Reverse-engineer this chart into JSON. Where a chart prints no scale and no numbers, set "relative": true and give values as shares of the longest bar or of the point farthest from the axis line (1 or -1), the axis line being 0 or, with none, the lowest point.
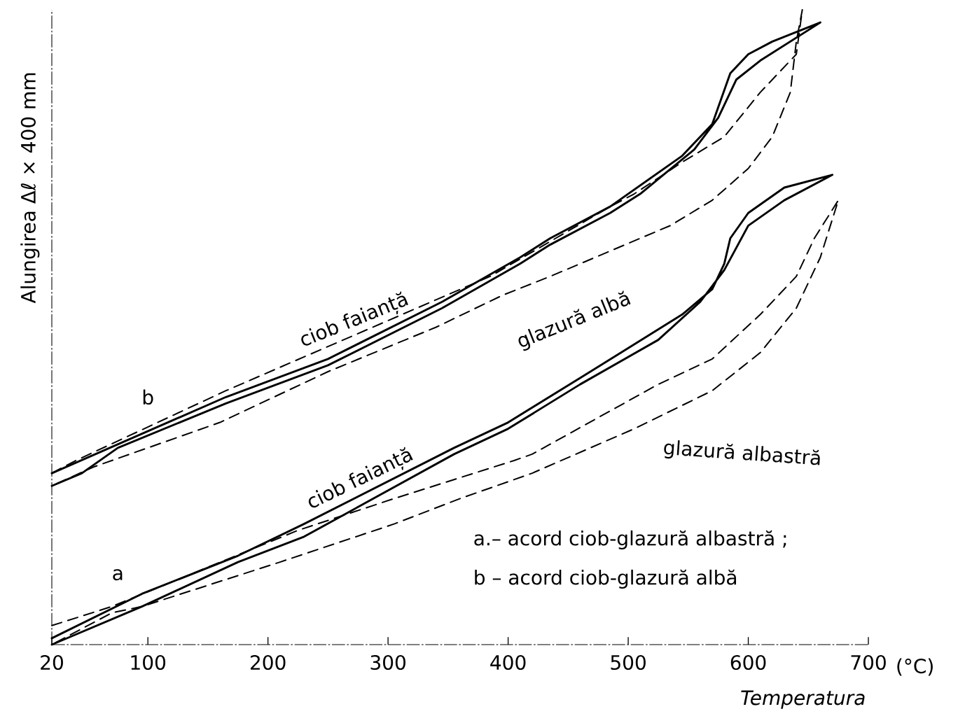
{
  "chart_data": {
    "type": "line",
    "relative": true,
    "xlabel": "Temperatura",
    "ylabel": "Alungirea Δℓ × 400 mm",
    "xlim": [
      20,
      700
    ],
    "xticks": [
      20,
      100,
      200,
      300,
      400,
      500,
      600,
      700
    ],
    "series": [
      {
        "color": "#000000",
        "line_style": "solid",
        "x": [
          20,
          165,
          250,
          345,
          410,
          435,
          485,
          545,
          570,
          585,
          600,
          620,
          660,
          635,
          610,
          590,
          575,
          555,
          510,
          485,
          435,
          410,
          345,
          250,
          165,
          75,
          45,
          20
        ],
        "values": [
          0.27,
          0.39,
          0.45,
          0.54,
          0.61,
          0.64,
          0.69,
          0.77,
          0.82,
          0.9,
          0.93,
          0.95,
          0.98,
          0.95,
          0.92,
          0.89,
          0.83,
          0.78,
          0.71,
          0.68,
          0.63,
          0.6,
          0.53,
          0.44,
          0.38,
          0.31,
          0.27,
          0.25
        ]
      },
      {
        "color": "#000000",
        "line_style": "dashed",
        "x": [
          20,
          40,
          165,
          275,
          385,
          485,
          505,
          545,
          580,
          610,
          640,
          645,
          640,
          635,
          620,
          600,
          570,
          535,
          485,
          435,
          395,
          340,
          250,
          160,
          55,
          20
        ],
        "values": [
          0.27,
          0.29,
          0.4,
          0.49,
          0.58,
          0.69,
          0.71,
          0.76,
          0.8,
          0.87,
          0.93,
          1,
          0.95,
          0.87,
          0.8,
          0.75,
          0.7,
          0.66,
          0.62,
          0.58,
          0.55,
          0.5,
          0.43,
          0.35,
          0.28,
          0.25
        ]
      },
      {
        "color": "#000000",
        "line_style": "solid",
        "x": [
          20,
          95,
          175,
          230,
          355,
          400,
          460,
          545,
          570,
          580,
          585,
          600,
          630,
          670,
          630,
          600,
          580,
          560,
          525,
          460,
          400,
          355,
          230,
          175,
          95,
          20
        ],
        "values": [
          0.01,
          0.08,
          0.14,
          0.19,
          0.31,
          0.35,
          0.42,
          0.52,
          0.56,
          0.6,
          0.64,
          0.68,
          0.72,
          0.74,
          0.7,
          0.66,
          0.59,
          0.54,
          0.48,
          0.41,
          0.34,
          0.3,
          0.17,
          0.13,
          0.06,
          0
        ]
      },
      {
        "color": "#000000",
        "line_style": "dashed",
        "x": [
          20,
          70,
          225,
          305,
          405,
          420,
          525,
          570,
          610,
          640,
          655,
          675,
          660,
          640,
          610,
          570,
          505,
          420,
          360,
          305,
          210,
          95,
          70,
          20
        ],
        "values": [
          0.03,
          0.06,
          0.18,
          0.23,
          0.29,
          0.3,
          0.41,
          0.45,
          0.52,
          0.58,
          0.64,
          0.7,
          0.61,
          0.53,
          0.46,
          0.4,
          0.34,
          0.27,
          0.23,
          0.19,
          0.13,
          0.06,
          0.05,
          0
        ]
      }
    ],
    "annotations": [
      "ciob faianță",
      "glazură albă",
      "b",
      "ciob faianță",
      "glazură albastră",
      "a",
      "(°C)",
      "a.– acord ciob-glazură albastră ;",
      "b – acord ciob-glazură albă"
    ]
  }
}
